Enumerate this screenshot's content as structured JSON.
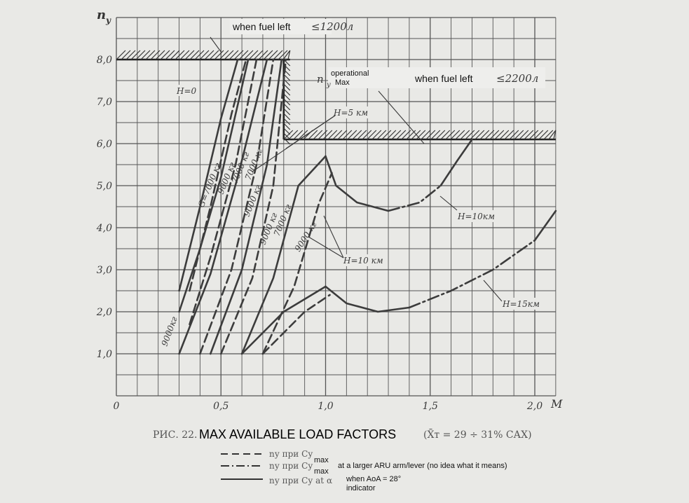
{
  "chart_data": {
    "type": "line",
    "y_axis_label": "n_y",
    "x_axis_label": "M",
    "xlim": [
      0,
      2.1
    ],
    "ylim": [
      0,
      9.0
    ],
    "x_ticks": [
      "0",
      "0,5",
      "1,0",
      "1,5",
      "2,0"
    ],
    "y_ticks": [
      "1,0",
      "2,0",
      "3,0",
      "4,0",
      "5,0",
      "6,0",
      "7,0",
      "8,0"
    ],
    "limits": [
      {
        "label": "when fuel left",
        "value_text": "≤1200л",
        "y": 8.0,
        "x_range": [
          0,
          0.83
        ]
      },
      {
        "label": "when fuel left",
        "value_text": "≤2200л",
        "y": 6.1,
        "x_range": [
          0.8,
          2.1
        ]
      }
    ],
    "operational_max": {
      "symbol": "n",
      "sub": "y",
      "sup": "operational",
      "sub2": "Max"
    },
    "annotations": [
      "H=0",
      "H=5 км",
      "H=10 км",
      "H=10 км",
      "H=15 км",
      "G=7000 кг",
      "9000 кг",
      "7000 кг",
      "7000 кг",
      "9000 кг",
      "9000 кг",
      "7000 кг",
      "9000 кг",
      "9000 кг"
    ],
    "series": [
      {
        "style": "solid",
        "points": [
          [
            0.3,
            2.5
          ],
          [
            0.4,
            4.5
          ],
          [
            0.5,
            6.6
          ],
          [
            0.58,
            8.0
          ]
        ]
      },
      {
        "style": "dashed",
        "points": [
          [
            0.35,
            2.5
          ],
          [
            0.45,
            4.5
          ],
          [
            0.55,
            6.7
          ],
          [
            0.62,
            8.0
          ]
        ]
      },
      {
        "style": "solid",
        "points": [
          [
            0.3,
            2.0
          ],
          [
            0.4,
            3.5
          ],
          [
            0.5,
            5.2
          ],
          [
            0.63,
            8.0
          ]
        ]
      },
      {
        "style": "dashed",
        "points": [
          [
            0.35,
            1.7
          ],
          [
            0.45,
            3.3
          ],
          [
            0.57,
            5.5
          ],
          [
            0.67,
            8.0
          ]
        ]
      },
      {
        "style": "solid",
        "points": [
          [
            0.3,
            1.0
          ],
          [
            0.45,
            2.9
          ],
          [
            0.58,
            5.2
          ],
          [
            0.72,
            8.0
          ]
        ]
      },
      {
        "style": "dashed",
        "points": [
          [
            0.4,
            1.0
          ],
          [
            0.55,
            3.0
          ],
          [
            0.67,
            5.5
          ],
          [
            0.75,
            8.0
          ]
        ]
      },
      {
        "style": "solid",
        "points": [
          [
            0.45,
            1.0
          ],
          [
            0.6,
            3.0
          ],
          [
            0.72,
            5.5
          ],
          [
            0.79,
            8.0
          ]
        ]
      },
      {
        "style": "dashed",
        "points": [
          [
            0.5,
            1.0
          ],
          [
            0.65,
            2.8
          ],
          [
            0.75,
            5.0
          ],
          [
            0.81,
            8.0
          ]
        ]
      },
      {
        "style": "solid",
        "points": [
          [
            0.6,
            1.0
          ],
          [
            0.75,
            2.8
          ],
          [
            0.87,
            5.0
          ],
          [
            1.0,
            5.7
          ]
        ]
      },
      {
        "style": "dashed",
        "points": [
          [
            0.7,
            1.0
          ],
          [
            0.85,
            2.6
          ],
          [
            0.97,
            4.6
          ],
          [
            1.03,
            5.3
          ]
        ]
      },
      {
        "style": "solid",
        "points": [
          [
            0.6,
            1.0
          ],
          [
            0.8,
            2.0
          ],
          [
            1.0,
            2.6
          ]
        ]
      },
      {
        "style": "dashed",
        "points": [
          [
            0.7,
            1.0
          ],
          [
            0.9,
            2.0
          ],
          [
            1.02,
            2.4
          ]
        ]
      },
      {
        "style": "solid",
        "points": [
          [
            1.0,
            5.7
          ],
          [
            1.05,
            5.0
          ],
          [
            1.15,
            4.6
          ],
          [
            1.3,
            4.4
          ]
        ]
      },
      {
        "style": "dashdot",
        "points": [
          [
            1.3,
            4.4
          ],
          [
            1.45,
            4.6
          ],
          [
            1.55,
            5.0
          ]
        ]
      },
      {
        "style": "solid",
        "points": [
          [
            1.55,
            5.0
          ],
          [
            1.63,
            5.6
          ],
          [
            1.7,
            6.1
          ]
        ]
      },
      {
        "style": "solid",
        "points": [
          [
            1.0,
            2.6
          ],
          [
            1.1,
            2.2
          ],
          [
            1.25,
            2.0
          ],
          [
            1.4,
            2.1
          ]
        ]
      },
      {
        "style": "dashdot",
        "points": [
          [
            1.4,
            2.1
          ],
          [
            1.6,
            2.5
          ],
          [
            1.8,
            3.0
          ],
          [
            2.0,
            3.7
          ]
        ]
      },
      {
        "style": "solid",
        "points": [
          [
            2.0,
            3.7
          ],
          [
            2.1,
            4.4
          ]
        ]
      }
    ]
  },
  "figure": {
    "y_label": "n",
    "y_label_sub": "y",
    "x_label": "M",
    "fuel_1200": {
      "label": "when fuel left",
      "value": "≤1200л"
    },
    "fuel_2200": {
      "label": "when fuel left",
      "value": "≤2200л"
    },
    "op_max_top": "operational",
    "op_max_bottom": "Max",
    "op_max_n": "n",
    "op_max_y": "y",
    "h0": "H=0",
    "h5": "H=5 км",
    "h10a": "H=10 км",
    "h10b": "H=10км",
    "h15": "H=15км",
    "w_labels": [
      "G=7000 кг",
      "9000 кг",
      "7000 кг",
      "7000 кг",
      "9000 кг",
      "9000 кг",
      "7000 кг",
      "9000 кг",
      "9000кг"
    ]
  },
  "caption": {
    "ru_prefix": "РИС. 22.",
    "title": "MAX AVAILABLE LOAD FACTORS",
    "suffix": "(X̄т = 29 ÷ 31% САХ)"
  },
  "legend": [
    {
      "style": "dashed",
      "text": "nу при Cу",
      "sub": "max",
      "note": ""
    },
    {
      "style": "dashdot",
      "text": "nу при Cу",
      "sub": "max",
      "note": "at a larger ARU arm/lever (no idea what it means)"
    },
    {
      "style": "solid",
      "text": "nу при Cу  at α",
      "sub": "",
      "note": "when AoA  = 28°",
      "note2": "indicator"
    }
  ]
}
